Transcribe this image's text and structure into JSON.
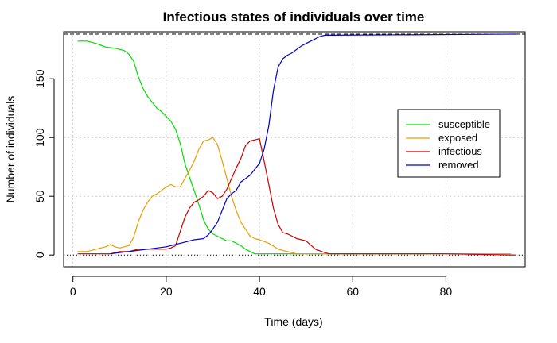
{
  "chart_data": {
    "type": "line",
    "title": "Infectious states of individuals over time",
    "xlabel": "Time (days)",
    "ylabel": "Number of individuals",
    "xlim": [
      -2,
      97
    ],
    "ylim": [
      -10,
      190
    ],
    "xticks": [
      0,
      20,
      40,
      60,
      80
    ],
    "yticks": [
      0,
      50,
      100,
      150
    ],
    "grid": true,
    "legend_position": "right",
    "reference_lines": [
      {
        "y": 188,
        "style": "dashed"
      },
      {
        "y": 0,
        "style": "dotted"
      }
    ],
    "series": [
      {
        "name": "susceptible",
        "color": "#00dd00",
        "x": [
          1,
          3,
          5,
          7,
          9,
          11,
          12,
          13,
          14,
          15,
          16,
          17,
          18,
          19,
          20,
          21,
          22,
          23,
          24,
          25,
          26,
          27,
          28,
          29,
          30,
          31,
          32,
          33,
          34,
          35,
          36,
          37,
          38,
          39,
          40,
          45,
          60,
          77
        ],
        "values": [
          182,
          182,
          180,
          177,
          176,
          174,
          171,
          165,
          152,
          142,
          135,
          130,
          125,
          122,
          118,
          114,
          107,
          95,
          78,
          66,
          55,
          43,
          30,
          22,
          18,
          16,
          14,
          12,
          12,
          10,
          8,
          5,
          3,
          1,
          1,
          1,
          1,
          1
        ]
      },
      {
        "name": "exposed",
        "color": "#e8a000",
        "x": [
          1,
          3,
          5,
          7,
          8,
          9,
          10,
          11,
          12,
          13,
          14,
          15,
          16,
          17,
          18,
          19,
          20,
          21,
          22,
          23,
          24,
          25,
          26,
          27,
          28,
          29,
          30,
          31,
          32,
          33,
          34,
          35,
          36,
          37,
          38,
          39,
          40,
          42,
          44,
          46,
          48,
          50,
          52,
          60,
          94
        ],
        "values": [
          3,
          3,
          5,
          7,
          9,
          7,
          6,
          7,
          8,
          15,
          28,
          38,
          45,
          50,
          52,
          55,
          58,
          60,
          58,
          58,
          65,
          72,
          80,
          90,
          97,
          98,
          100,
          94,
          80,
          65,
          50,
          38,
          28,
          22,
          16,
          14,
          13,
          10,
          5,
          3,
          1,
          1,
          1,
          1,
          1
        ]
      },
      {
        "name": "infectious",
        "color": "#cc0000",
        "x": [
          1,
          5,
          8,
          10,
          12,
          14,
          16,
          18,
          20,
          21,
          22,
          23,
          24,
          25,
          26,
          27,
          28,
          29,
          30,
          31,
          32,
          33,
          34,
          35,
          36,
          37,
          38,
          39,
          40,
          41,
          42,
          43,
          44,
          45,
          46,
          47,
          48,
          50,
          52,
          54,
          55,
          80,
          95
        ],
        "values": [
          1,
          1,
          1,
          3,
          3,
          5,
          5,
          5,
          5,
          6,
          8,
          20,
          32,
          40,
          45,
          47,
          50,
          55,
          53,
          48,
          50,
          56,
          65,
          74,
          82,
          93,
          97,
          98,
          99,
          80,
          60,
          40,
          26,
          19,
          18,
          16,
          14,
          12,
          5,
          2,
          1,
          1,
          0
        ]
      },
      {
        "name": "removed",
        "color": "#0000cc",
        "x": [
          8,
          10,
          12,
          14,
          16,
          18,
          20,
          22,
          24,
          26,
          28,
          29,
          30,
          31,
          32,
          33,
          34,
          35,
          36,
          37,
          38,
          39,
          40,
          41,
          42,
          43,
          44,
          45,
          46,
          47,
          48,
          49,
          50,
          51,
          52,
          53,
          54,
          55,
          95
        ],
        "values": [
          1,
          2,
          3,
          4,
          5,
          6,
          7,
          9,
          11,
          13,
          14,
          17,
          22,
          28,
          38,
          48,
          52,
          55,
          62,
          65,
          68,
          73,
          78,
          90,
          110,
          140,
          160,
          167,
          170,
          172,
          175,
          178,
          180,
          182,
          184,
          186,
          187,
          187,
          188
        ]
      }
    ]
  }
}
